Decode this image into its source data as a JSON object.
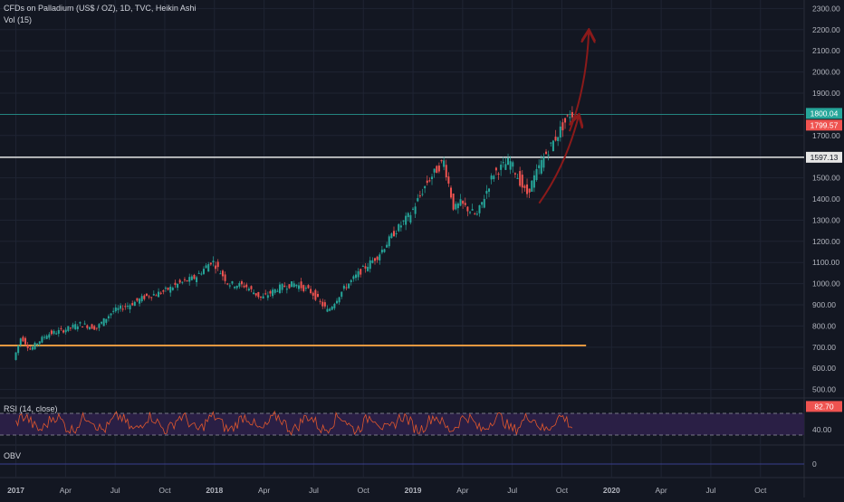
{
  "colors": {
    "background": "#131722",
    "grid": "#1f2433",
    "up": "#26a69a",
    "down": "#ef5350",
    "resistance_line": "#e6e6e6",
    "support_line": "#f5a142",
    "projection_arrow": "#8b1a1a",
    "rsi_line": "#e2572d",
    "rsi_band": "#2a1f45",
    "obv_line": "#3a3f8f"
  },
  "header": {
    "title": "CFDs on Palladium (US$ / OZ), 1D, TVC, Heikin Ashi",
    "volume_label": "Vol (15)"
  },
  "rsi_panel": {
    "label": "RSI (14, close)",
    "current_value": "82.70",
    "level_label": "40.00"
  },
  "obv_panel": {
    "label": "OBV",
    "zero_label": "0"
  },
  "price_tags": {
    "last_up": "1800.04",
    "last_down": "1799.57",
    "line_level": "1597.13"
  },
  "chart_data": [
    {
      "type": "candlestick",
      "title": "CFDs on Palladium (US$ / OZ), 1D, TVC, Heikin Ashi",
      "x_labels": [
        "2017",
        "Apr",
        "Jul",
        "Oct",
        "2018",
        "Apr",
        "Jul",
        "Oct",
        "2019",
        "Apr",
        "Jul",
        "Oct",
        "2020",
        "Apr",
        "Jul",
        "Oct"
      ],
      "y_ticks": [
        500,
        600,
        700,
        800,
        900,
        1000,
        1100,
        1200,
        1300,
        1400,
        1500,
        1600,
        1700,
        1800,
        1900,
        2000,
        2100,
        2200,
        2300
      ],
      "ylim": [
        460,
        2340
      ],
      "price_path": [
        {
          "x": "2017-01",
          "y": 640
        },
        {
          "x": "2017-01-15",
          "y": 750
        },
        {
          "x": "2017-02",
          "y": 690
        },
        {
          "x": "2017-03",
          "y": 760
        },
        {
          "x": "2017-04",
          "y": 780
        },
        {
          "x": "2017-05",
          "y": 810
        },
        {
          "x": "2017-06",
          "y": 790
        },
        {
          "x": "2017-07",
          "y": 870
        },
        {
          "x": "2017-08",
          "y": 900
        },
        {
          "x": "2017-09",
          "y": 940
        },
        {
          "x": "2017-10",
          "y": 960
        },
        {
          "x": "2017-11",
          "y": 1000
        },
        {
          "x": "2017-12",
          "y": 1030
        },
        {
          "x": "2018-01",
          "y": 1110
        },
        {
          "x": "2018-02",
          "y": 1000
        },
        {
          "x": "2018-03",
          "y": 990
        },
        {
          "x": "2018-04",
          "y": 930
        },
        {
          "x": "2018-05",
          "y": 980
        },
        {
          "x": "2018-06",
          "y": 1000
        },
        {
          "x": "2018-07",
          "y": 960
        },
        {
          "x": "2018-08",
          "y": 870
        },
        {
          "x": "2018-09",
          "y": 980
        },
        {
          "x": "2018-10",
          "y": 1060
        },
        {
          "x": "2018-11",
          "y": 1130
        },
        {
          "x": "2018-12",
          "y": 1240
        },
        {
          "x": "2019-01",
          "y": 1330
        },
        {
          "x": "2019-02",
          "y": 1480
        },
        {
          "x": "2019-03",
          "y": 1580
        },
        {
          "x": "2019-03-20",
          "y": 1350
        },
        {
          "x": "2019-04",
          "y": 1380
        },
        {
          "x": "2019-05",
          "y": 1320
        },
        {
          "x": "2019-06",
          "y": 1520
        },
        {
          "x": "2019-07",
          "y": 1580
        },
        {
          "x": "2019-08",
          "y": 1420
        },
        {
          "x": "2019-09",
          "y": 1590
        },
        {
          "x": "2019-10",
          "y": 1720
        },
        {
          "x": "2019-10-20",
          "y": 1800
        }
      ],
      "horizontal_levels": [
        {
          "label": "1597.13",
          "y": 1597.13,
          "style": "white-line"
        },
        {
          "y": 1800.04,
          "style": "last-price-line"
        },
        {
          "y": 708,
          "x_end": "2019-11-15",
          "style": "orange-support"
        }
      ],
      "annotations": [
        {
          "type": "arrow",
          "from": {
            "x": "2019-08-20",
            "y": 1380
          },
          "to": {
            "x": "2019-11-01",
            "y": 1790
          }
        },
        {
          "type": "arrow",
          "from": {
            "x": "2019-10-15",
            "y": 1720
          },
          "to": {
            "x": "2019-11-20",
            "y": 2190
          }
        }
      ],
      "last_value": 1800.04
    },
    {
      "type": "line",
      "title": "RSI (14, close)",
      "y_ticks": [
        40
      ],
      "band": [
        30,
        70
      ],
      "last_value": 82.7
    },
    {
      "type": "line",
      "title": "OBV",
      "y_ticks": [
        0
      ]
    }
  ]
}
